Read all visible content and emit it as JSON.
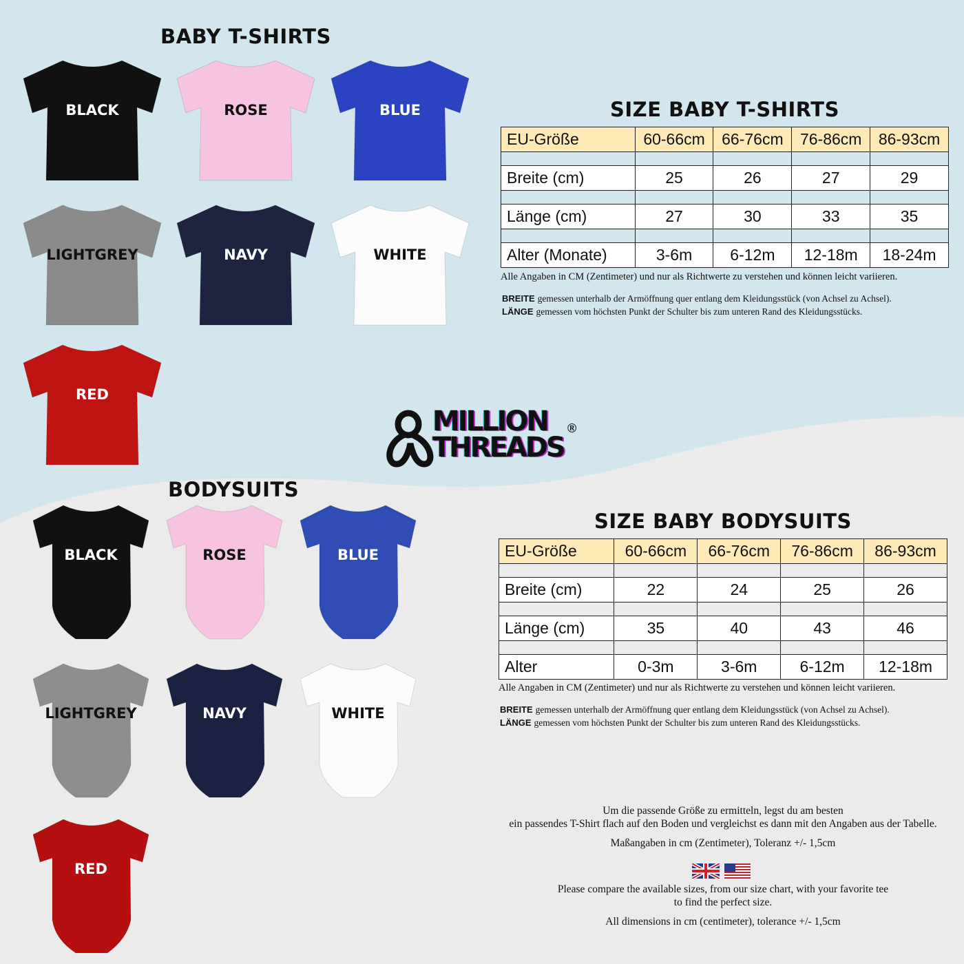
{
  "colors": {
    "top_bg": "#d3e6ee",
    "bottom_bg": "#ebebeb",
    "header_cell": "#fde9b5"
  },
  "tshirts": {
    "title": "BABY T-SHIRTS",
    "items": [
      {
        "label": "BLACK",
        "color": "#111111",
        "text": "#ffffff"
      },
      {
        "label": "ROSE",
        "color": "#f6c4e0",
        "text": "#111111"
      },
      {
        "label": "BLUE",
        "color": "#2a43c2",
        "text": "#ffffff"
      },
      {
        "label": "LIGHTGREY",
        "color": "#8b8b8b",
        "text": "#111111"
      },
      {
        "label": "NAVY",
        "color": "#1d2340",
        "text": "#ffffff"
      },
      {
        "label": "WHITE",
        "color": "#fbfbfb",
        "text": "#111111"
      },
      {
        "label": "RED",
        "color": "#c01313",
        "text": "#ffffff"
      }
    ]
  },
  "bodysuits": {
    "title": "BODYSUITS",
    "items": [
      {
        "label": "BLACK",
        "color": "#111111",
        "text": "#ffffff"
      },
      {
        "label": "ROSE",
        "color": "#f6c4e0",
        "text": "#111111"
      },
      {
        "label": "BLUE",
        "color": "#2f4db5",
        "text": "#ffffff"
      },
      {
        "label": "LIGHTGREY",
        "color": "#8e8e8e",
        "text": "#111111"
      },
      {
        "label": "NAVY",
        "color": "#1b2140",
        "text": "#ffffff"
      },
      {
        "label": "WHITE",
        "color": "#fbfbfb",
        "text": "#111111"
      },
      {
        "label": "RED",
        "color": "#b50f0f",
        "text": "#ffffff"
      }
    ]
  },
  "logo": {
    "line1": "MILLION",
    "line2": "THREADS",
    "mark": "®"
  },
  "table_tshirts": {
    "title": "SIZE BABY T-SHIRTS",
    "header": [
      "EU-Größe",
      "60-66cm",
      "66-76cm",
      "76-86cm",
      "86-93cm"
    ],
    "rows": [
      [
        "Breite (cm)",
        "25",
        "26",
        "27",
        "29"
      ],
      [
        "Länge (cm)",
        "27",
        "30",
        "33",
        "35"
      ],
      [
        "Alter (Monate)",
        "3-6m",
        "6-12m",
        "12-18m",
        "18-24m"
      ]
    ],
    "note": "Alle Angaben in CM (Zentimeter) und nur als Richtwerte zu verstehen und können leicht variieren.",
    "defs": [
      {
        "term": "BREITE",
        "text": "gemessen unterhalb der Armöffnung quer entlang dem Kleidungsstück (von Achsel zu Achsel)."
      },
      {
        "term": "LÄNGE",
        "text": "gemessen vom höchsten Punkt der Schulter bis zum unteren Rand des Kleidungsstücks."
      }
    ]
  },
  "table_bodysuits": {
    "title": "SIZE BABY BODYSUITS",
    "header": [
      "EU-Größe",
      "60-66cm",
      "66-76cm",
      "76-86cm",
      "86-93cm"
    ],
    "rows": [
      [
        "Breite (cm)",
        "22",
        "24",
        "25",
        "26"
      ],
      [
        "Länge (cm)",
        "35",
        "40",
        "43",
        "46"
      ],
      [
        "Alter",
        "0-3m",
        "3-6m",
        "6-12m",
        "12-18m"
      ]
    ],
    "note": "Alle Angaben in CM (Zentimeter) und nur als Richtwerte zu verstehen und können leicht variieren.",
    "defs": [
      {
        "term": "BREITE",
        "text": "gemessen unterhalb der Armöffnung quer entlang dem Kleidungsstück (von Achsel zu Achsel)."
      },
      {
        "term": "LÄNGE",
        "text": "gemessen vom höchsten Punkt der Schulter bis zum unteren Rand des Kleidungsstücks."
      }
    ]
  },
  "info": {
    "de_line1": "Um die passende Größe zu ermitteln, legst du am besten",
    "de_line2": "ein passendes T-Shirt flach auf den Boden und vergleichst es dann mit den Angaben aus der Tabelle.",
    "de_tolerance": "Maßangaben in cm (Zentimeter), Toleranz +/- 1,5cm",
    "flags": [
      "uk-flag-icon",
      "us-flag-icon"
    ],
    "en_line1": "Please compare the available sizes, from our size chart, with your favorite tee",
    "en_line2": "to find the perfect size.",
    "en_tolerance": "All dimensions in cm (centimeter), tolerance +/- 1,5cm"
  }
}
